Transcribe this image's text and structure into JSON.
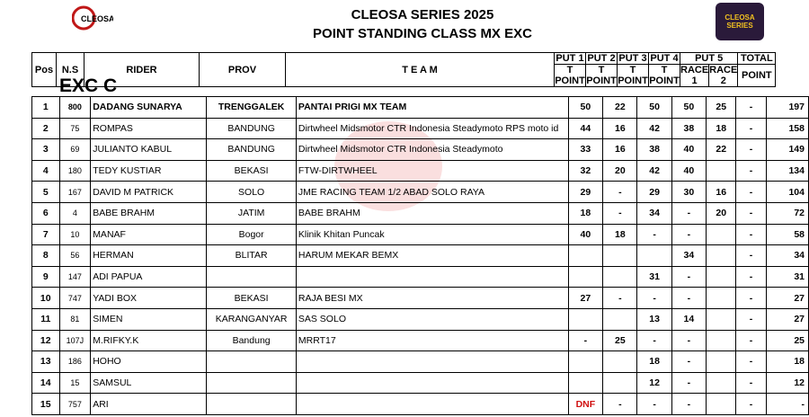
{
  "header": {
    "title1": "CLEOSA SERIES 2025",
    "title2": "POINT STANDING CLASS MX EXC",
    "logo_left": "CLEOSA",
    "logo_right": "CLEOSA SERIES"
  },
  "columns": {
    "pos": "Pos",
    "ns": "N.S",
    "rider": "RIDER",
    "prov": "PROV",
    "team": "T E A M",
    "put1": "PUT 1",
    "put2": "PUT 2",
    "put3": "PUT 3",
    "put4": "PUT 4",
    "put5": "PUT 5",
    "total1": "TOTAL",
    "total2": "POINT",
    "tpoint": "T POINT",
    "race1": "RACE 1",
    "race2": "RACE 2"
  },
  "class_label": "EXC C",
  "rows": [
    {
      "pos": "1",
      "ns": "800",
      "rider": "DADANG SUNARYA",
      "prov": "TRENGGALEK",
      "team": "PANTAI PRIGI MX TEAM",
      "p1": "50",
      "p2": "22",
      "p3": "50",
      "p4": "50",
      "r1": "25",
      "r2": "-",
      "total": "197"
    },
    {
      "pos": "2",
      "ns": "75",
      "rider": "ROMPAS",
      "prov": "BANDUNG",
      "team": "Dirtwheel Midsmotor CTR Indonesia Steadymoto RPS moto id",
      "p1": "44",
      "p2": "16",
      "p3": "42",
      "p4": "38",
      "r1": "18",
      "r2": "-",
      "total": "158"
    },
    {
      "pos": "3",
      "ns": "69",
      "rider": "JULIANTO KABUL",
      "prov": "BANDUNG",
      "team": "Dirtwheel Midsmotor CTR Indonesia Steadymoto",
      "p1": "33",
      "p2": "16",
      "p3": "38",
      "p4": "40",
      "r1": "22",
      "r2": "-",
      "total": "149"
    },
    {
      "pos": "4",
      "ns": "180",
      "rider": "TEDY KUSTIAR",
      "prov": "BEKASI",
      "team": "FTW-DIRTWHEEL",
      "p1": "32",
      "p2": "20",
      "p3": "42",
      "p4": "40",
      "r1": "",
      "r2": "-",
      "total": "134"
    },
    {
      "pos": "5",
      "ns": "167",
      "rider": "DAVID M PATRICK",
      "prov": "SOLO",
      "team": "JME RACING TEAM 1/2 ABAD SOLO RAYA",
      "p1": "29",
      "p2": "-",
      "p3": "29",
      "p4": "30",
      "r1": "16",
      "r2": "-",
      "total": "104"
    },
    {
      "pos": "6",
      "ns": "4",
      "rider": "BABE BRAHM",
      "prov": "JATIM",
      "team": "BABE BRAHM",
      "p1": "18",
      "p2": "-",
      "p3": "34",
      "p4": "-",
      "r1": "20",
      "r2": "-",
      "total": "72"
    },
    {
      "pos": "7",
      "ns": "10",
      "rider": "MANAF",
      "prov": "Bogor",
      "team": "Klinik Khitan Puncak",
      "p1": "40",
      "p2": "18",
      "p3": "-",
      "p4": "-",
      "r1": "",
      "r2": "-",
      "total": "58"
    },
    {
      "pos": "8",
      "ns": "56",
      "rider": "HERMAN",
      "prov": "BLITAR",
      "team": "HARUM MEKAR BEMX",
      "p1": "",
      "p2": "",
      "p3": "",
      "p4": "34",
      "r1": "",
      "r2": "-",
      "total": "34"
    },
    {
      "pos": "9",
      "ns": "147",
      "rider": "ADI PAPUA",
      "prov": "",
      "team": "",
      "p1": "",
      "p2": "",
      "p3": "31",
      "p4": "-",
      "r1": "",
      "r2": "-",
      "total": "31"
    },
    {
      "pos": "10",
      "ns": "747",
      "rider": "YADI BOX",
      "prov": "BEKASI",
      "team": "RAJA BESI MX",
      "p1": "27",
      "p2": "-",
      "p3": "-",
      "p4": "-",
      "r1": "",
      "r2": "-",
      "total": "27"
    },
    {
      "pos": "11",
      "ns": "81",
      "rider": "SIMEN",
      "prov": "KARANGANYAR",
      "team": "SAS SOLO",
      "p1": "",
      "p2": "",
      "p3": "13",
      "p4": "14",
      "r1": "",
      "r2": "-",
      "total": "27"
    },
    {
      "pos": "12",
      "ns": "107J",
      "rider": "M.RIFKY.K",
      "prov": "Bandung",
      "team": "MRRT17",
      "p1": "-",
      "p2": "25",
      "p3": "-",
      "p4": "-",
      "r1": "",
      "r2": "-",
      "total": "25"
    },
    {
      "pos": "13",
      "ns": "186",
      "rider": "HOHO",
      "prov": "",
      "team": "",
      "p1": "",
      "p2": "",
      "p3": "18",
      "p4": "-",
      "r1": "",
      "r2": "-",
      "total": "18"
    },
    {
      "pos": "14",
      "ns": "15",
      "rider": "SAMSUL",
      "prov": "",
      "team": "",
      "p1": "",
      "p2": "",
      "p3": "12",
      "p4": "-",
      "r1": "",
      "r2": "-",
      "total": "12"
    },
    {
      "pos": "15",
      "ns": "757",
      "rider": "ARI",
      "prov": "",
      "team": "",
      "p1": "DNF",
      "p2": "-",
      "p3": "-",
      "p4": "-",
      "r1": "",
      "r2": "-",
      "total": "-"
    }
  ],
  "colors": {
    "dnf": "#d01010",
    "watermark": "#dc2828"
  }
}
